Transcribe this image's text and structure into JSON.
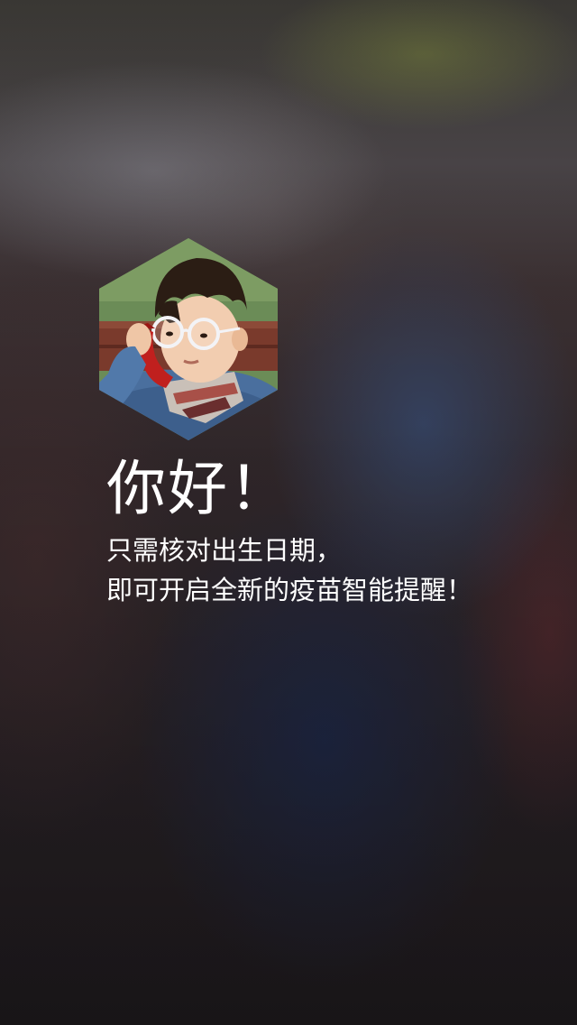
{
  "greeting": "你好！",
  "message": {
    "line1": "只需核对出生日期，",
    "line2": "即可开启全新的疫苗智能提醒！"
  },
  "avatar": {
    "icon": "child-photo"
  },
  "colors": {
    "text": "#ffffff",
    "background": "#2a2327"
  }
}
